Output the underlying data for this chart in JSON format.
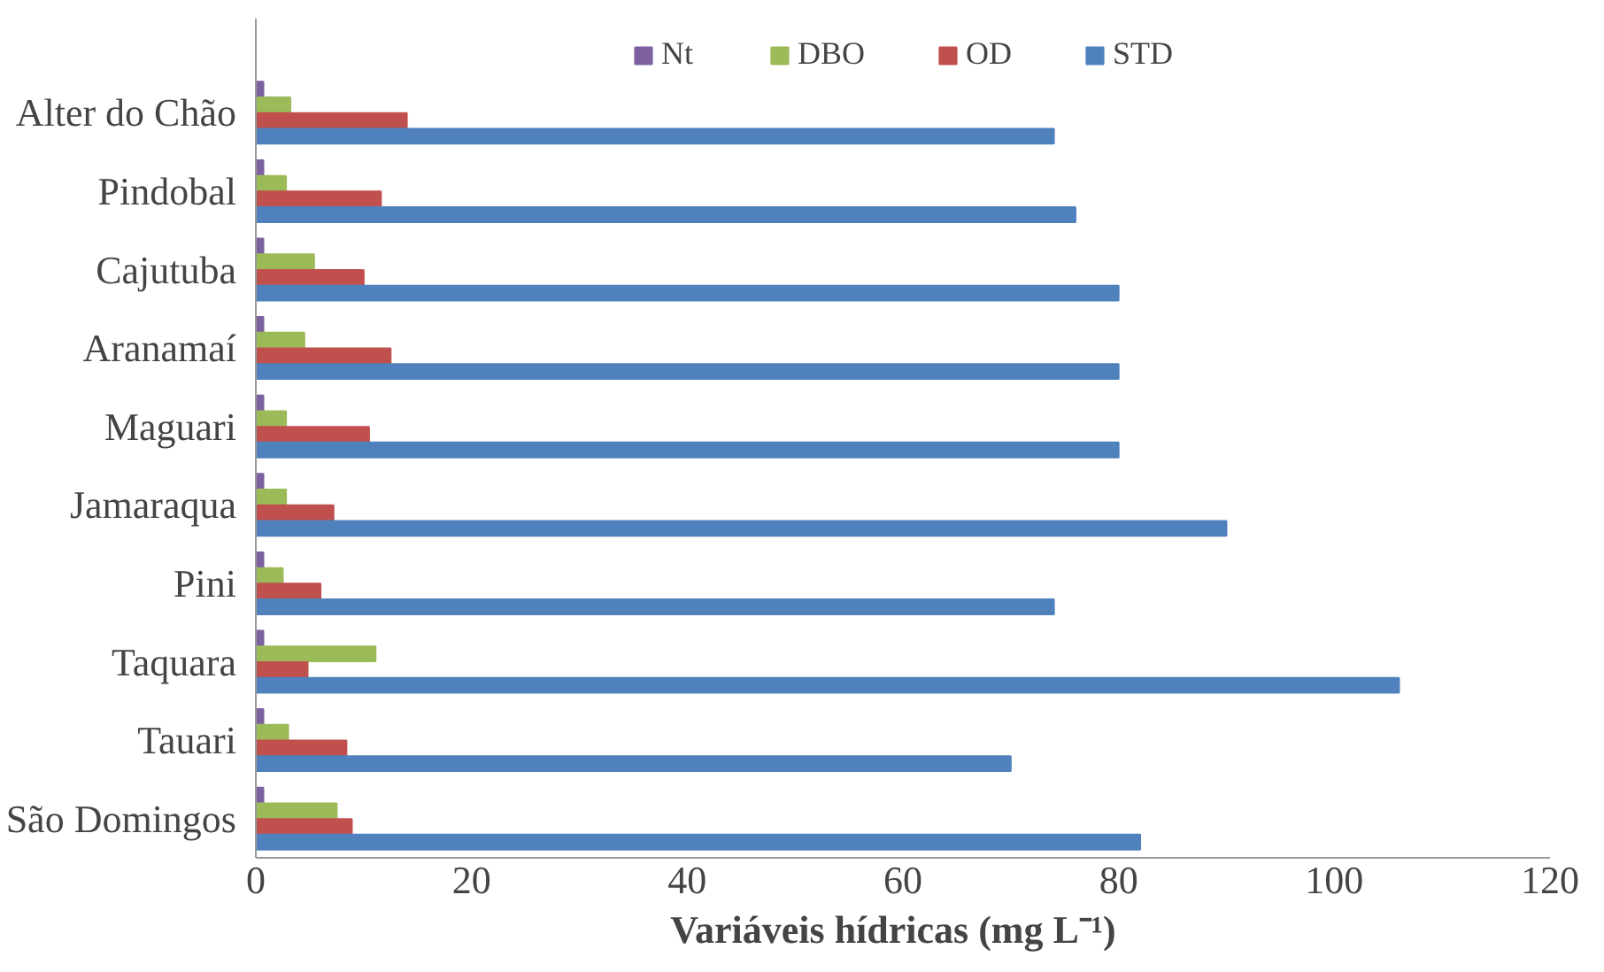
{
  "chart_data": {
    "type": "bar",
    "orientation": "horizontal",
    "categories": [
      "Alter do Chão",
      "Pindobal",
      "Cajutuba",
      "Aranamaí",
      "Maguari",
      "Jamaraqua",
      "Pini",
      "Taquara",
      "Tauari",
      "São Domingos"
    ],
    "series": [
      {
        "name": "Nt",
        "color": "#7d60a0",
        "values": [
          0.7,
          0.7,
          0.7,
          0.7,
          0.7,
          0.7,
          0.7,
          0.7,
          0.7,
          0.7
        ]
      },
      {
        "name": "DBO",
        "color": "#9bbb59",
        "values": [
          3.2,
          2.8,
          5.4,
          4.5,
          2.8,
          2.8,
          2.5,
          11.1,
          3.0,
          7.5
        ]
      },
      {
        "name": "OD",
        "color": "#c0504d",
        "values": [
          14,
          11.6,
          10.0,
          12.5,
          10.5,
          7.2,
          6.0,
          4.8,
          8.4,
          8.9
        ]
      },
      {
        "name": "STD",
        "color": "#4f81bd",
        "values": [
          74,
          76,
          80,
          80,
          80,
          90,
          74,
          106,
          70,
          82
        ]
      }
    ],
    "xlabel": "Variáveis hídricas   (mg L⁻¹)",
    "xlim": [
      0,
      120
    ],
    "xticks": [
      0,
      20,
      40,
      60,
      80,
      100,
      120
    ],
    "grid": false,
    "legend": "top"
  }
}
